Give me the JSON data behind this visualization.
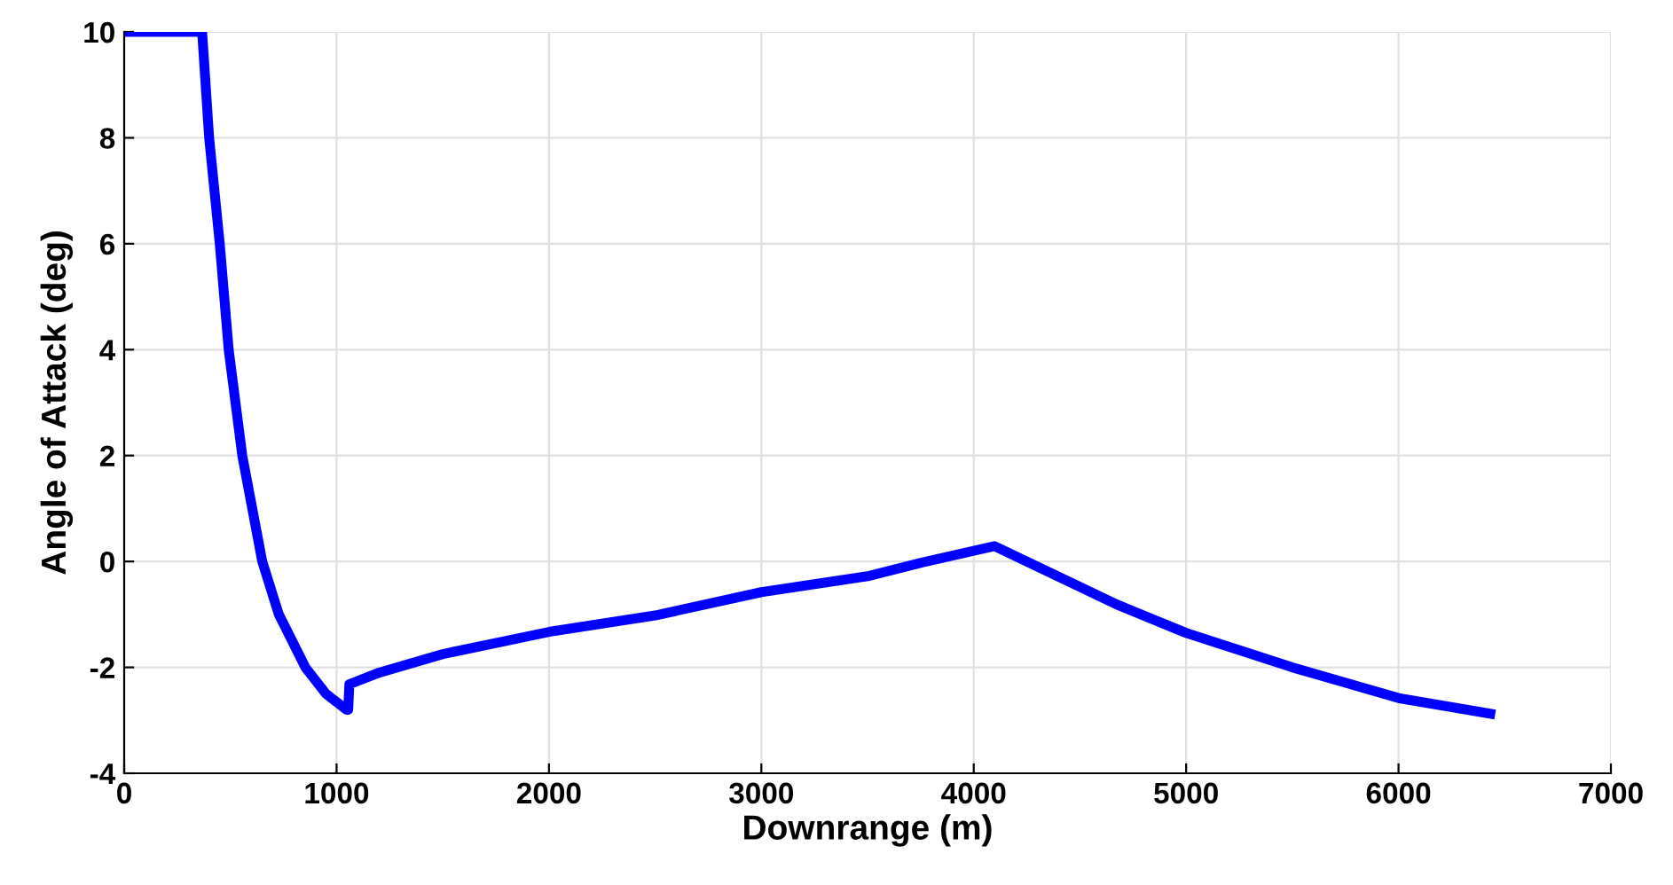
{
  "chart_data": {
    "type": "line",
    "xlabel": "Downrange (m)",
    "ylabel": "Angle of Attack (deg)",
    "xlim": [
      0,
      7000
    ],
    "ylim": [
      -4,
      10
    ],
    "xticks": [
      0,
      1000,
      2000,
      3000,
      4000,
      5000,
      6000,
      7000
    ],
    "yticks": [
      -4,
      -2,
      0,
      2,
      4,
      6,
      8,
      10
    ],
    "grid": true,
    "series": [
      {
        "color": "#0000ff",
        "x": [
          0,
          367,
          400,
          450,
          492,
          556,
          650,
          728,
          853,
          950,
          1047,
          1055,
          1060,
          1200,
          1500,
          2000,
          2500,
          3000,
          3500,
          3756,
          4097,
          4672,
          5000,
          5500,
          6000,
          6455
        ],
        "values": [
          10,
          10,
          8,
          6,
          4,
          2,
          0,
          -1,
          -2,
          -2.5,
          -2.8,
          -2.8,
          -2.32,
          -2.1,
          -1.75,
          -1.33,
          -1.02,
          -0.58,
          -0.28,
          -0.02,
          0.29,
          -0.81,
          -1.35,
          -2.0,
          -2.58,
          -2.89
        ]
      }
    ]
  }
}
